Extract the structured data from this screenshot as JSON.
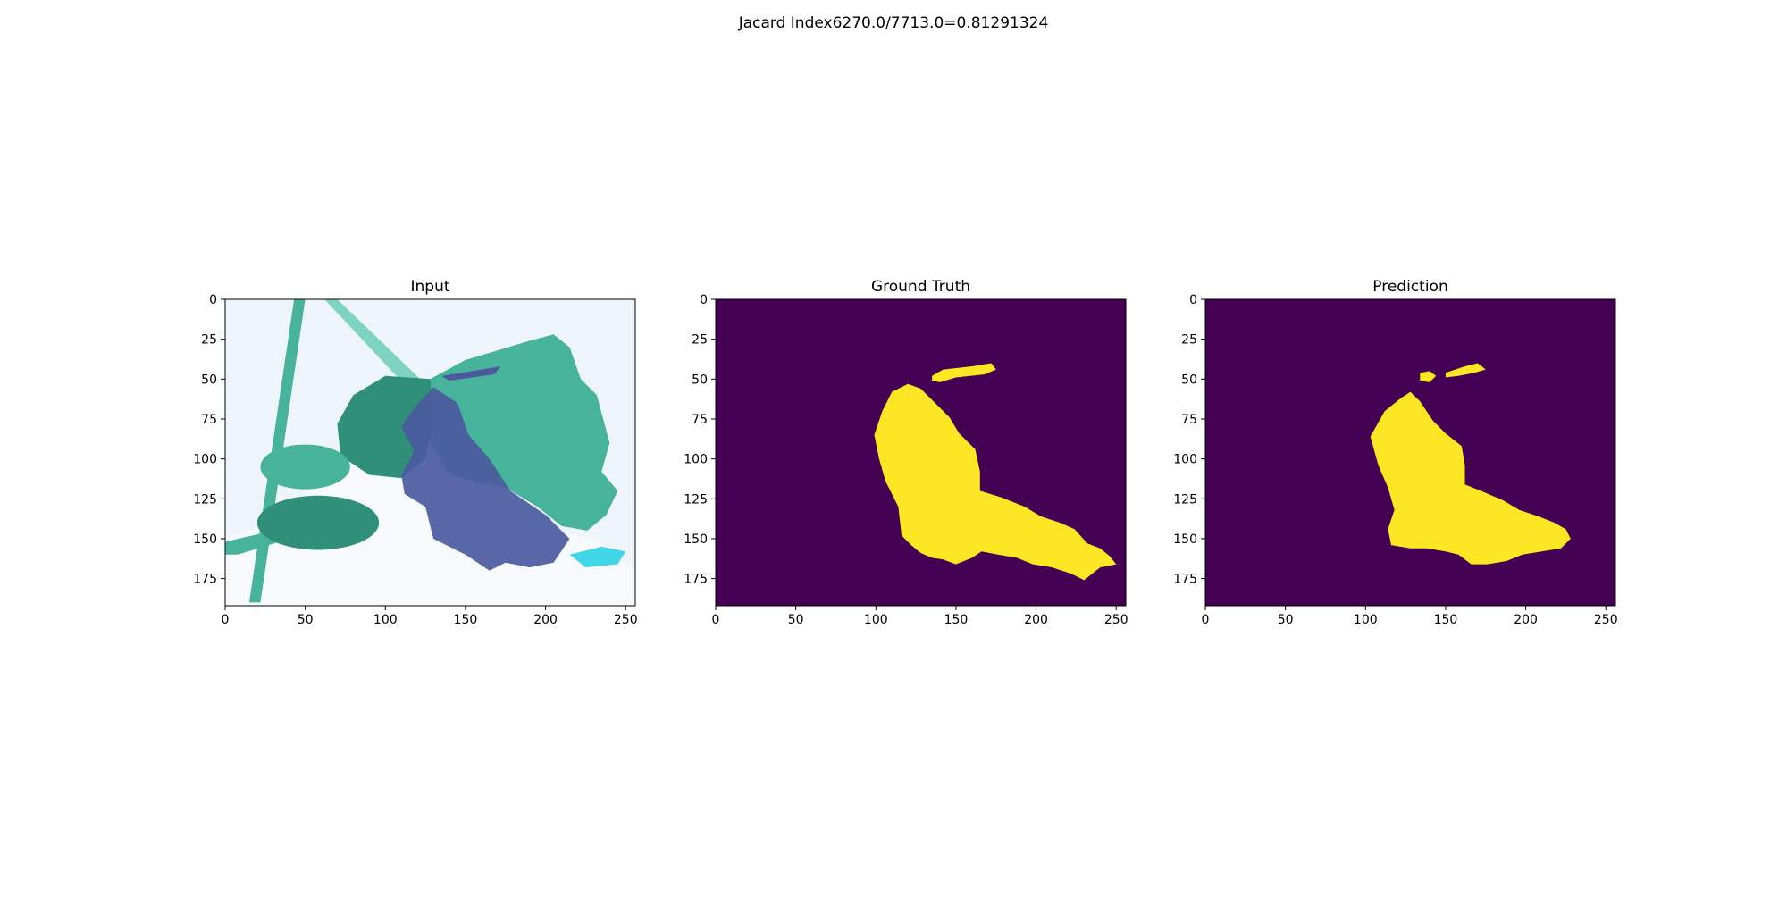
{
  "figure": {
    "suptitle": "Jacard Index6270.0/7713.0=0.81291324"
  },
  "colors": {
    "mask_background": "#440154",
    "mask_foreground": "#fde725",
    "leaf_dark": "#2f8f78",
    "leaf_mid": "#46b39a",
    "leaf_light": "#7fd4bf",
    "lesion": "#4b5a9e",
    "image_background": "#eef5fa"
  },
  "chart_data": [
    {
      "type": "image",
      "title": "Input",
      "xlim": [
        0,
        256
      ],
      "ylim": [
        192,
        0
      ],
      "xticks": [
        0,
        50,
        100,
        150,
        200,
        250
      ],
      "yticks": [
        0,
        25,
        50,
        75,
        100,
        125,
        150,
        175
      ]
    },
    {
      "type": "heatmap",
      "title": "Ground Truth",
      "xlim": [
        0,
        256
      ],
      "ylim": [
        192,
        0
      ],
      "xticks": [
        0,
        50,
        100,
        150,
        200,
        250
      ],
      "yticks": [
        0,
        25,
        50,
        75,
        100,
        125,
        150,
        175
      ],
      "mask_regions": [
        [
          [
            135,
            48
          ],
          [
            142,
            44
          ],
          [
            160,
            42
          ],
          [
            172,
            40
          ],
          [
            175,
            44
          ],
          [
            168,
            47
          ],
          [
            150,
            49
          ],
          [
            140,
            52
          ],
          [
            135,
            51
          ]
        ],
        [
          [
            110,
            58
          ],
          [
            120,
            53
          ],
          [
            128,
            56
          ],
          [
            136,
            64
          ],
          [
            146,
            74
          ],
          [
            152,
            84
          ],
          [
            162,
            94
          ],
          [
            165,
            108
          ],
          [
            165,
            120
          ],
          [
            178,
            124
          ],
          [
            193,
            130
          ],
          [
            203,
            136
          ],
          [
            215,
            140
          ],
          [
            224,
            144
          ],
          [
            232,
            153
          ],
          [
            240,
            156
          ],
          [
            246,
            161
          ],
          [
            250,
            166
          ],
          [
            240,
            168
          ],
          [
            235,
            172
          ],
          [
            230,
            176
          ],
          [
            222,
            172
          ],
          [
            210,
            168
          ],
          [
            198,
            166
          ],
          [
            188,
            162
          ],
          [
            176,
            160
          ],
          [
            166,
            158
          ],
          [
            160,
            162
          ],
          [
            150,
            166
          ],
          [
            142,
            163
          ],
          [
            135,
            162
          ],
          [
            128,
            159
          ],
          [
            122,
            154
          ],
          [
            116,
            148
          ],
          [
            114,
            130
          ],
          [
            106,
            114
          ],
          [
            102,
            100
          ],
          [
            99,
            85
          ],
          [
            104,
            70
          ]
        ]
      ]
    },
    {
      "type": "heatmap",
      "title": "Prediction",
      "xlim": [
        0,
        256
      ],
      "ylim": [
        192,
        0
      ],
      "xticks": [
        0,
        50,
        100,
        150,
        200,
        250
      ],
      "yticks": [
        0,
        25,
        50,
        75,
        100,
        125,
        150,
        175
      ],
      "mask_regions": [
        [
          [
            134,
            46
          ],
          [
            140,
            45
          ],
          [
            144,
            48
          ],
          [
            140,
            52
          ],
          [
            134,
            51
          ]
        ],
        [
          [
            150,
            46
          ],
          [
            162,
            42
          ],
          [
            170,
            40
          ],
          [
            175,
            44
          ],
          [
            168,
            46
          ],
          [
            158,
            48
          ],
          [
            150,
            49
          ]
        ],
        [
          [
            112,
            70
          ],
          [
            122,
            62
          ],
          [
            128,
            58
          ],
          [
            134,
            64
          ],
          [
            142,
            76
          ],
          [
            150,
            84
          ],
          [
            160,
            92
          ],
          [
            162,
            104
          ],
          [
            162,
            116
          ],
          [
            172,
            120
          ],
          [
            186,
            126
          ],
          [
            196,
            132
          ],
          [
            208,
            136
          ],
          [
            218,
            140
          ],
          [
            225,
            144
          ],
          [
            228,
            150
          ],
          [
            222,
            156
          ],
          [
            210,
            158
          ],
          [
            198,
            160
          ],
          [
            188,
            164
          ],
          [
            176,
            166
          ],
          [
            166,
            166
          ],
          [
            158,
            160
          ],
          [
            150,
            158
          ],
          [
            138,
            156
          ],
          [
            128,
            156
          ],
          [
            116,
            154
          ],
          [
            114,
            144
          ],
          [
            118,
            132
          ],
          [
            114,
            118
          ],
          [
            108,
            104
          ],
          [
            103,
            86
          ]
        ]
      ]
    }
  ]
}
